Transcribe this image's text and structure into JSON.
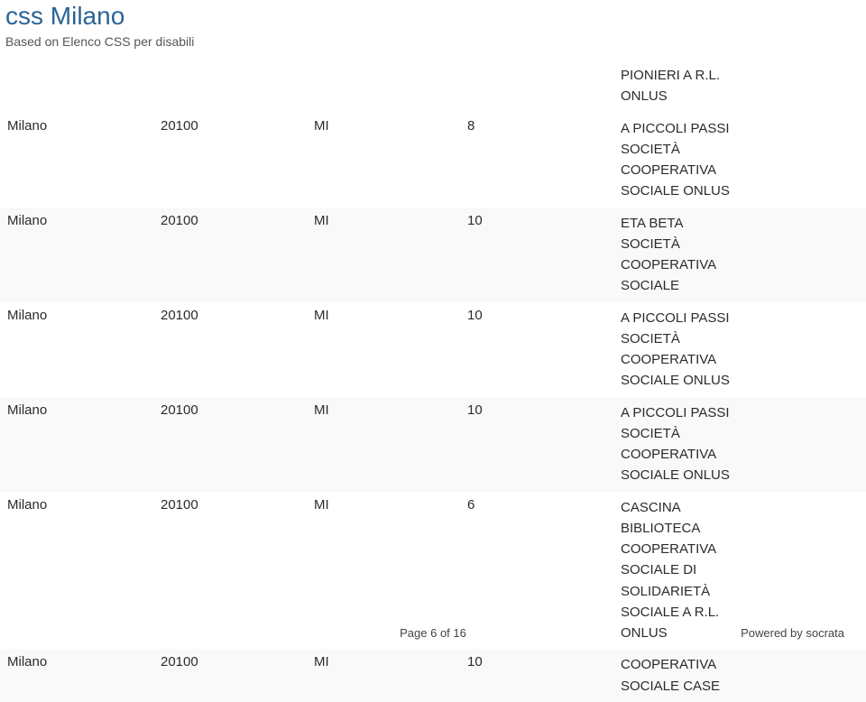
{
  "header": {
    "title": "css Milano",
    "subtitle": "Based on Elenco CSS per disabili",
    "title_color": "#2a6496",
    "subtitle_color": "#555555"
  },
  "columns": {
    "city_width": 170,
    "cap_width": 170,
    "prov_width": 170,
    "num_width": 170,
    "detail_width": 280
  },
  "colors": {
    "row_alt_bg": "#f9f9f9",
    "text": "#2b2b2b",
    "footer": "#444444"
  },
  "rows": [
    {
      "city": "",
      "cap": "",
      "prov": "",
      "num": "",
      "lines": [
        "PIONIERI A R.L.",
        "ONLUS"
      ],
      "alt": false
    },
    {
      "city": "Milano",
      "cap": "20100",
      "prov": "MI",
      "num": "8",
      "lines": [
        "A PICCOLI PASSI",
        "SOCIETÀ",
        "COOPERATIVA",
        "SOCIALE ONLUS"
      ],
      "alt": false
    },
    {
      "city": "Milano",
      "cap": "20100",
      "prov": "MI",
      "num": "10",
      "lines": [
        "ETA BETA",
        "SOCIETÀ",
        "COOPERATIVA",
        "SOCIALE"
      ],
      "alt": true
    },
    {
      "city": "Milano",
      "cap": "20100",
      "prov": "MI",
      "num": "10",
      "lines": [
        "A PICCOLI PASSI",
        "SOCIETÀ",
        "COOPERATIVA",
        "SOCIALE ONLUS"
      ],
      "alt": false
    },
    {
      "city": "Milano",
      "cap": "20100",
      "prov": "MI",
      "num": "10",
      "lines": [
        "A PICCOLI PASSI",
        "SOCIETÀ",
        "COOPERATIVA",
        "SOCIALE ONLUS"
      ],
      "alt": true
    },
    {
      "city": "Milano",
      "cap": "20100",
      "prov": "MI",
      "num": "6",
      "lines": [
        "CASCINA",
        "BIBLIOTECA",
        "COOPERATIVA",
        "SOCIALE DI",
        "SOLIDARIETÀ",
        "SOCIALE A R.L.",
        "ONLUS"
      ],
      "alt": false
    },
    {
      "city": "Milano",
      "cap": "20100",
      "prov": "MI",
      "num": "10",
      "lines": [
        "COOPERATIVA",
        "SOCIALE CASE"
      ],
      "alt": true
    }
  ],
  "footer": {
    "center": "Page 6 of 16",
    "right": "Powered by socrata"
  }
}
